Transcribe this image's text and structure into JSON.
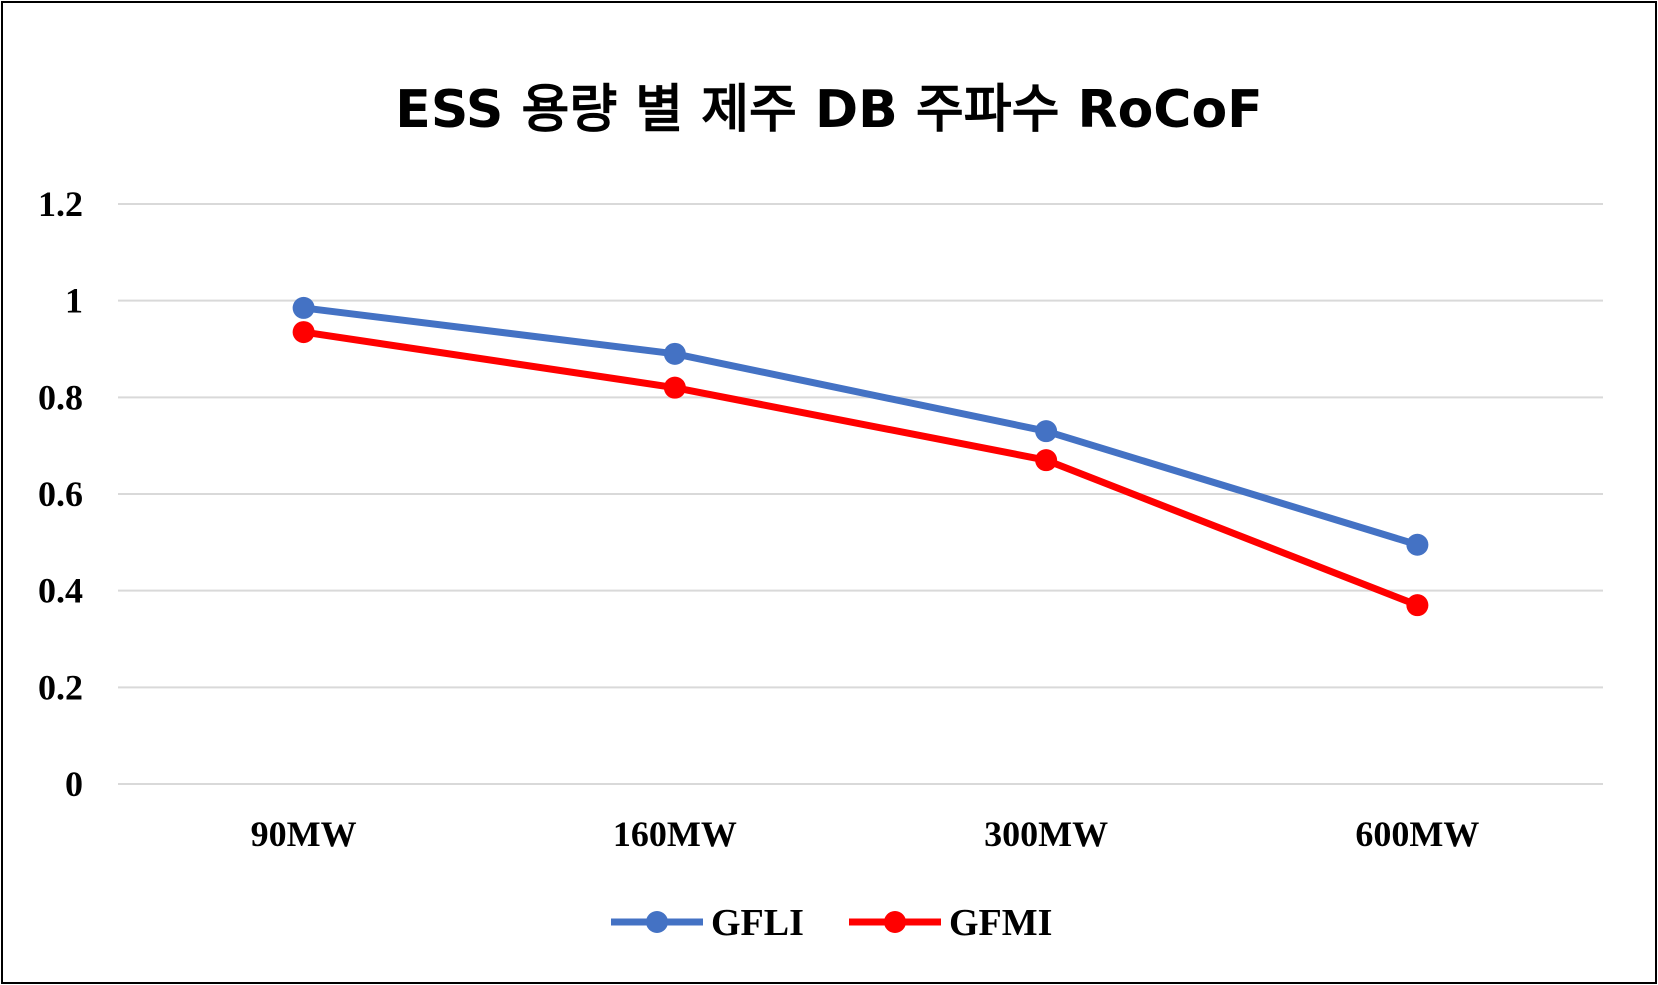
{
  "chart_data": {
    "type": "line",
    "title": "ESS 용량 별 제주 DB 주파수 RoCoF",
    "xlabel": "",
    "ylabel": "",
    "categories": [
      "90MW",
      "160MW",
      "300MW",
      "600MW"
    ],
    "ylim": [
      0,
      1.2
    ],
    "yticks": [
      "0",
      "0.2",
      "0.4",
      "0.6",
      "0.8",
      "1",
      "1.2"
    ],
    "grid": true,
    "legend": "bottom",
    "series": [
      {
        "name": "GFLI",
        "color": "#4472C4",
        "values": [
          0.985,
          0.89,
          0.73,
          0.495
        ]
      },
      {
        "name": "GFMI",
        "color": "#FF0000",
        "values": [
          0.935,
          0.82,
          0.67,
          0.37
        ]
      }
    ]
  }
}
